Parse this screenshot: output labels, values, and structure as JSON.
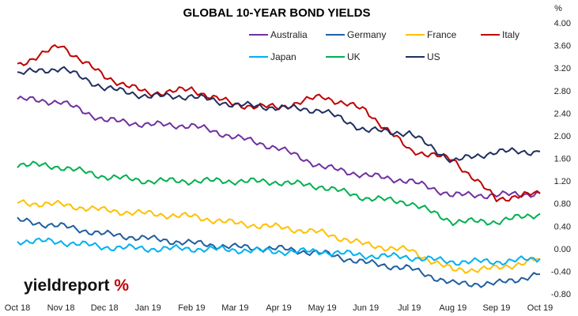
{
  "chart_data": {
    "type": "line",
    "title": "GLOBAL 10-YEAR BOND YIELDS",
    "ylabel": "%",
    "ylim": [
      -0.8,
      4.0
    ],
    "y_ticks": [
      "4.00",
      "3.60",
      "3.20",
      "2.80",
      "2.40",
      "2.00",
      "1.60",
      "1.20",
      "0.80",
      "0.40",
      "0.00",
      "-0.40",
      "-0.80"
    ],
    "x_ticks": [
      "Oct 18",
      "Nov 18",
      "Dec 18",
      "Jan 19",
      "Feb 19",
      "Mar 19",
      "Apr 19",
      "May 19",
      "Jun 19",
      "Jul 19",
      "Aug 19",
      "Sep 19",
      "Oct 19"
    ],
    "legend_position": "top",
    "grid": false,
    "series": [
      {
        "name": "Australia",
        "color": "#7030a0",
        "values": [
          2.65,
          2.6,
          2.28,
          2.2,
          2.18,
          1.98,
          1.78,
          1.45,
          1.3,
          1.2,
          0.95,
          0.95,
          0.98
        ]
      },
      {
        "name": "Germany",
        "color": "#1f5fa0",
        "values": [
          0.5,
          0.4,
          0.26,
          0.18,
          0.1,
          0.03,
          0.0,
          -0.08,
          -0.25,
          -0.35,
          -0.62,
          -0.62,
          -0.45
        ]
      },
      {
        "name": "France",
        "color": "#ffc000",
        "values": [
          0.82,
          0.78,
          0.68,
          0.62,
          0.57,
          0.45,
          0.38,
          0.28,
          0.07,
          -0.03,
          -0.38,
          -0.35,
          -0.18
        ]
      },
      {
        "name": "Italy",
        "color": "#c00000",
        "values": [
          3.25,
          3.6,
          3.05,
          2.75,
          2.82,
          2.55,
          2.5,
          2.7,
          2.45,
          1.75,
          1.58,
          0.88,
          0.98
        ]
      },
      {
        "name": "Japan",
        "color": "#00b0f0",
        "values": [
          0.14,
          0.12,
          0.03,
          0.0,
          0.0,
          -0.02,
          -0.05,
          -0.05,
          -0.12,
          -0.15,
          -0.23,
          -0.23,
          -0.18
        ]
      },
      {
        "name": "UK",
        "color": "#00b050",
        "values": [
          1.5,
          1.45,
          1.28,
          1.2,
          1.2,
          1.2,
          1.18,
          1.1,
          0.9,
          0.82,
          0.48,
          0.48,
          0.62
        ]
      },
      {
        "name": "US",
        "color": "#1f2f5f",
        "values": [
          3.1,
          3.2,
          2.85,
          2.7,
          2.7,
          2.55,
          2.5,
          2.45,
          2.1,
          2.05,
          1.55,
          1.72,
          1.72
        ]
      }
    ]
  },
  "branding": {
    "logo_word": "yieldreport",
    "logo_symbol": "%"
  }
}
